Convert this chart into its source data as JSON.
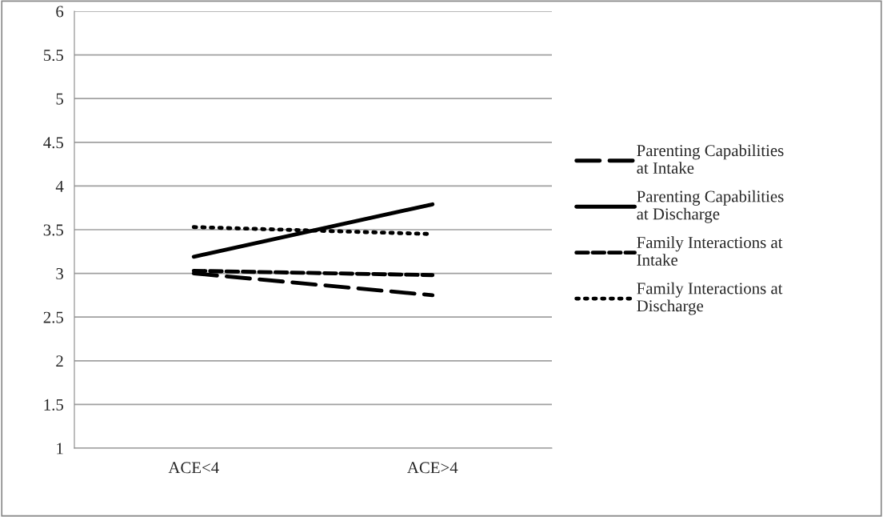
{
  "chart_data": {
    "type": "line",
    "categories": [
      "ACE<4",
      "ACE>4"
    ],
    "series": [
      {
        "name": "Parenting Capabilities at Intake",
        "color": "#000000",
        "values": [
          3.0,
          2.75
        ],
        "line_style": "dashed"
      },
      {
        "name": "Parenting Capabilities at Discharge",
        "color": "#000000",
        "values": [
          3.19,
          3.79
        ],
        "line_style": "solid"
      },
      {
        "name": "Family Interactions at Intake",
        "color": "#000000",
        "values": [
          3.03,
          2.98
        ],
        "line_style": "dashed"
      },
      {
        "name": "Family Interactions at Discharge",
        "color": "#000000",
        "values": [
          3.53,
          3.45
        ],
        "line_style": "dotted"
      }
    ],
    "ylim": [
      1,
      6
    ],
    "yticks": [
      1,
      1.5,
      2,
      2.5,
      3,
      3.5,
      4,
      4.5,
      5,
      5.5,
      6
    ],
    "grid": "y",
    "legend": "right",
    "marker": "none"
  }
}
